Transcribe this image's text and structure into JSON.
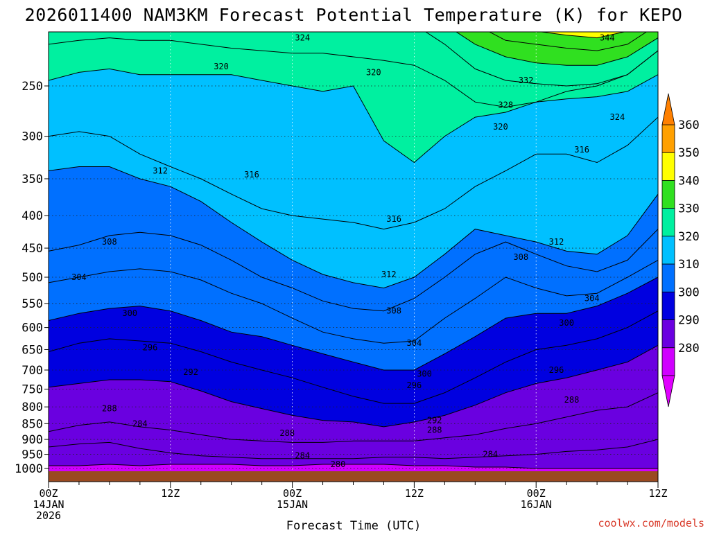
{
  "chart_data": {
    "type": "heatmap",
    "title": "2026011400 NAM3KM Forecast Potential Temperature (K) for KEPO",
    "xlabel": "Forecast Time (UTC)",
    "ylabel": "",
    "credit": "coolwx.com/models",
    "x_range_hours": [
      0,
      60
    ],
    "y_range_hPa": [
      1000,
      200
    ],
    "y_ticks": [
      250,
      300,
      350,
      400,
      450,
      500,
      550,
      600,
      650,
      700,
      750,
      800,
      850,
      900,
      950,
      1000
    ],
    "x_ticks": [
      {
        "hour": 0,
        "lines": [
          "00Z",
          "14JAN",
          "2026"
        ]
      },
      {
        "hour": 12,
        "lines": [
          "12Z"
        ]
      },
      {
        "hour": 24,
        "lines": [
          "00Z",
          "15JAN"
        ]
      },
      {
        "hour": 36,
        "lines": [
          "12Z"
        ]
      },
      {
        "hour": 48,
        "lines": [
          "00Z",
          "16JAN"
        ]
      },
      {
        "hour": 60,
        "lines": [
          "12Z"
        ]
      }
    ],
    "colorbar": {
      "ticks": [
        360,
        350,
        340,
        330,
        320,
        310,
        300,
        290,
        280
      ],
      "bands": [
        {
          "min": 350,
          "max": 360,
          "color": "#ffa000"
        },
        {
          "min": 340,
          "max": 350,
          "color": "#ffff00"
        },
        {
          "min": 330,
          "max": 340,
          "color": "#30e020"
        },
        {
          "min": 320,
          "max": 330,
          "color": "#00f0a0"
        },
        {
          "min": 310,
          "max": 320,
          "color": "#00c0ff"
        },
        {
          "min": 300,
          "max": 310,
          "color": "#0070ff"
        },
        {
          "min": 290,
          "max": 300,
          "color": "#0000e0"
        },
        {
          "min": 280,
          "max": 290,
          "color": "#6a00e0"
        },
        {
          "min": 270,
          "max": 280,
          "color": "#d000ff"
        }
      ],
      "top_cap_color": "#ff8000",
      "bottom_cap_color": "#e000ff"
    },
    "isentropes_K": [
      {
        "theta": 280,
        "pressures": [
          990,
          990,
          985,
          990,
          985,
          985,
          985,
          990,
          990,
          985,
          985,
          985,
          990,
          990,
          995,
          995,
          1000,
          1000,
          1000,
          1000,
          1000
        ]
      },
      {
        "theta": 284,
        "pressures": [
          925,
          915,
          910,
          930,
          945,
          955,
          960,
          965,
          965,
          965,
          965,
          960,
          960,
          965,
          960,
          955,
          950,
          940,
          935,
          925,
          900
        ]
      },
      {
        "theta": 288,
        "pressures": [
          875,
          855,
          845,
          860,
          870,
          885,
          900,
          905,
          910,
          910,
          905,
          905,
          905,
          895,
          885,
          865,
          850,
          830,
          810,
          800,
          760
        ]
      },
      {
        "theta": 292,
        "pressures": [
          745,
          735,
          725,
          725,
          730,
          755,
          785,
          805,
          825,
          840,
          845,
          860,
          845,
          825,
          795,
          760,
          735,
          720,
          700,
          680,
          640
        ]
      },
      {
        "theta": 296,
        "pressures": [
          655,
          635,
          625,
          630,
          635,
          655,
          680,
          700,
          720,
          745,
          770,
          790,
          790,
          760,
          720,
          680,
          650,
          640,
          625,
          600,
          565
        ]
      },
      {
        "theta": 300,
        "pressures": [
          585,
          570,
          560,
          555,
          565,
          585,
          610,
          620,
          640,
          660,
          680,
          700,
          700,
          660,
          620,
          580,
          570,
          570,
          555,
          530,
          500
        ]
      },
      {
        "theta": 304,
        "pressures": [
          510,
          500,
          490,
          485,
          490,
          505,
          530,
          550,
          580,
          610,
          625,
          635,
          630,
          580,
          540,
          500,
          520,
          535,
          530,
          500,
          470
        ]
      },
      {
        "theta": 308,
        "pressures": [
          455,
          445,
          430,
          425,
          430,
          445,
          470,
          500,
          520,
          545,
          560,
          565,
          540,
          500,
          460,
          440,
          460,
          480,
          490,
          470,
          420
        ]
      },
      {
        "theta": 312,
        "pressures": [
          340,
          335,
          335,
          350,
          360,
          380,
          410,
          440,
          470,
          495,
          510,
          520,
          500,
          460,
          420,
          430,
          440,
          455,
          460,
          430,
          370
        ]
      },
      {
        "theta": 316,
        "pressures": [
          300,
          295,
          300,
          320,
          335,
          350,
          370,
          390,
          400,
          405,
          410,
          420,
          410,
          390,
          360,
          340,
          320,
          320,
          330,
          310,
          280
        ]
      },
      {
        "theta": 320,
        "pressures": [
          245,
          238,
          235,
          240,
          240,
          240,
          240,
          245,
          250,
          255,
          250,
          305,
          330,
          300,
          280,
          275,
          265,
          255,
          250,
          240,
          220
        ]
      },
      {
        "theta": 324,
        "pressures": [
          215,
          212,
          210,
          212,
          212,
          215,
          218,
          220,
          222,
          222,
          225,
          228,
          232,
          245,
          265,
          270,
          265,
          262,
          260,
          255,
          240
        ]
      },
      {
        "theta": 328,
        "pressures": [
          200,
          200,
          200,
          200,
          200,
          200,
          200,
          200,
          200,
          200,
          200,
          200,
          200,
          215,
          235,
          245,
          248,
          250,
          248,
          240,
          220
        ]
      },
      {
        "theta": 332,
        "pressures": [
          200,
          200,
          200,
          200,
          200,
          200,
          200,
          200,
          200,
          200,
          200,
          200,
          200,
          200,
          215,
          225,
          230,
          232,
          232,
          225,
          210
        ]
      },
      {
        "theta": 336,
        "pressures": [
          200,
          200,
          200,
          200,
          200,
          200,
          200,
          200,
          200,
          200,
          200,
          200,
          200,
          200,
          200,
          212,
          215,
          218,
          220,
          215,
          200
        ]
      },
      {
        "theta": 340,
        "pressures": [
          200,
          200,
          200,
          200,
          200,
          200,
          200,
          200,
          200,
          200,
          200,
          200,
          200,
          200,
          200,
          200,
          205,
          208,
          210,
          205,
          200
        ]
      },
      {
        "theta": 344,
        "pressures": [
          200,
          200,
          200,
          200,
          200,
          200,
          200,
          200,
          200,
          200,
          200,
          200,
          200,
          200,
          200,
          200,
          200,
          200,
          202,
          200,
          200
        ]
      }
    ],
    "contour_labels": [
      {
        "text": "324",
        "hour": 25.0,
        "p": 210
      },
      {
        "text": "320",
        "hour": 17.0,
        "p": 233
      },
      {
        "text": "320",
        "hour": 32.0,
        "p": 238
      },
      {
        "text": "332",
        "hour": 47.0,
        "p": 245
      },
      {
        "text": "328",
        "hour": 45.0,
        "p": 268
      },
      {
        "text": "344",
        "hour": 55.0,
        "p": 210
      },
      {
        "text": "320",
        "hour": 44.5,
        "p": 290
      },
      {
        "text": "324",
        "hour": 56.0,
        "p": 280
      },
      {
        "text": "316",
        "hour": 52.5,
        "p": 315
      },
      {
        "text": "312",
        "hour": 11.0,
        "p": 340
      },
      {
        "text": "316",
        "hour": 20.0,
        "p": 345
      },
      {
        "text": "316",
        "hour": 34.0,
        "p": 405
      },
      {
        "text": "312",
        "hour": 50.0,
        "p": 440
      },
      {
        "text": "308",
        "hour": 6.0,
        "p": 440
      },
      {
        "text": "308",
        "hour": 46.5,
        "p": 465
      },
      {
        "text": "304",
        "hour": 3.0,
        "p": 500
      },
      {
        "text": "312",
        "hour": 33.5,
        "p": 495
      },
      {
        "text": "304",
        "hour": 53.5,
        "p": 540
      },
      {
        "text": "300",
        "hour": 8.0,
        "p": 570
      },
      {
        "text": "308",
        "hour": 34.0,
        "p": 565
      },
      {
        "text": "300",
        "hour": 51.0,
        "p": 590
      },
      {
        "text": "296",
        "hour": 10.0,
        "p": 645
      },
      {
        "text": "304",
        "hour": 36.0,
        "p": 635
      },
      {
        "text": "292",
        "hour": 14.0,
        "p": 705
      },
      {
        "text": "300",
        "hour": 37.0,
        "p": 710
      },
      {
        "text": "296",
        "hour": 36.0,
        "p": 740
      },
      {
        "text": "296",
        "hour": 50.0,
        "p": 700
      },
      {
        "text": "288",
        "hour": 6.0,
        "p": 805
      },
      {
        "text": "284",
        "hour": 9.0,
        "p": 850
      },
      {
        "text": "292",
        "hour": 38.0,
        "p": 840
      },
      {
        "text": "288",
        "hour": 38.0,
        "p": 870
      },
      {
        "text": "288",
        "hour": 51.5,
        "p": 780
      },
      {
        "text": "288",
        "hour": 23.5,
        "p": 880
      },
      {
        "text": "284",
        "hour": 25.0,
        "p": 955
      },
      {
        "text": "284",
        "hour": 43.5,
        "p": 950
      },
      {
        "text": "280",
        "hour": 28.5,
        "p": 985
      }
    ],
    "surface_pressure_hPa": 990
  }
}
